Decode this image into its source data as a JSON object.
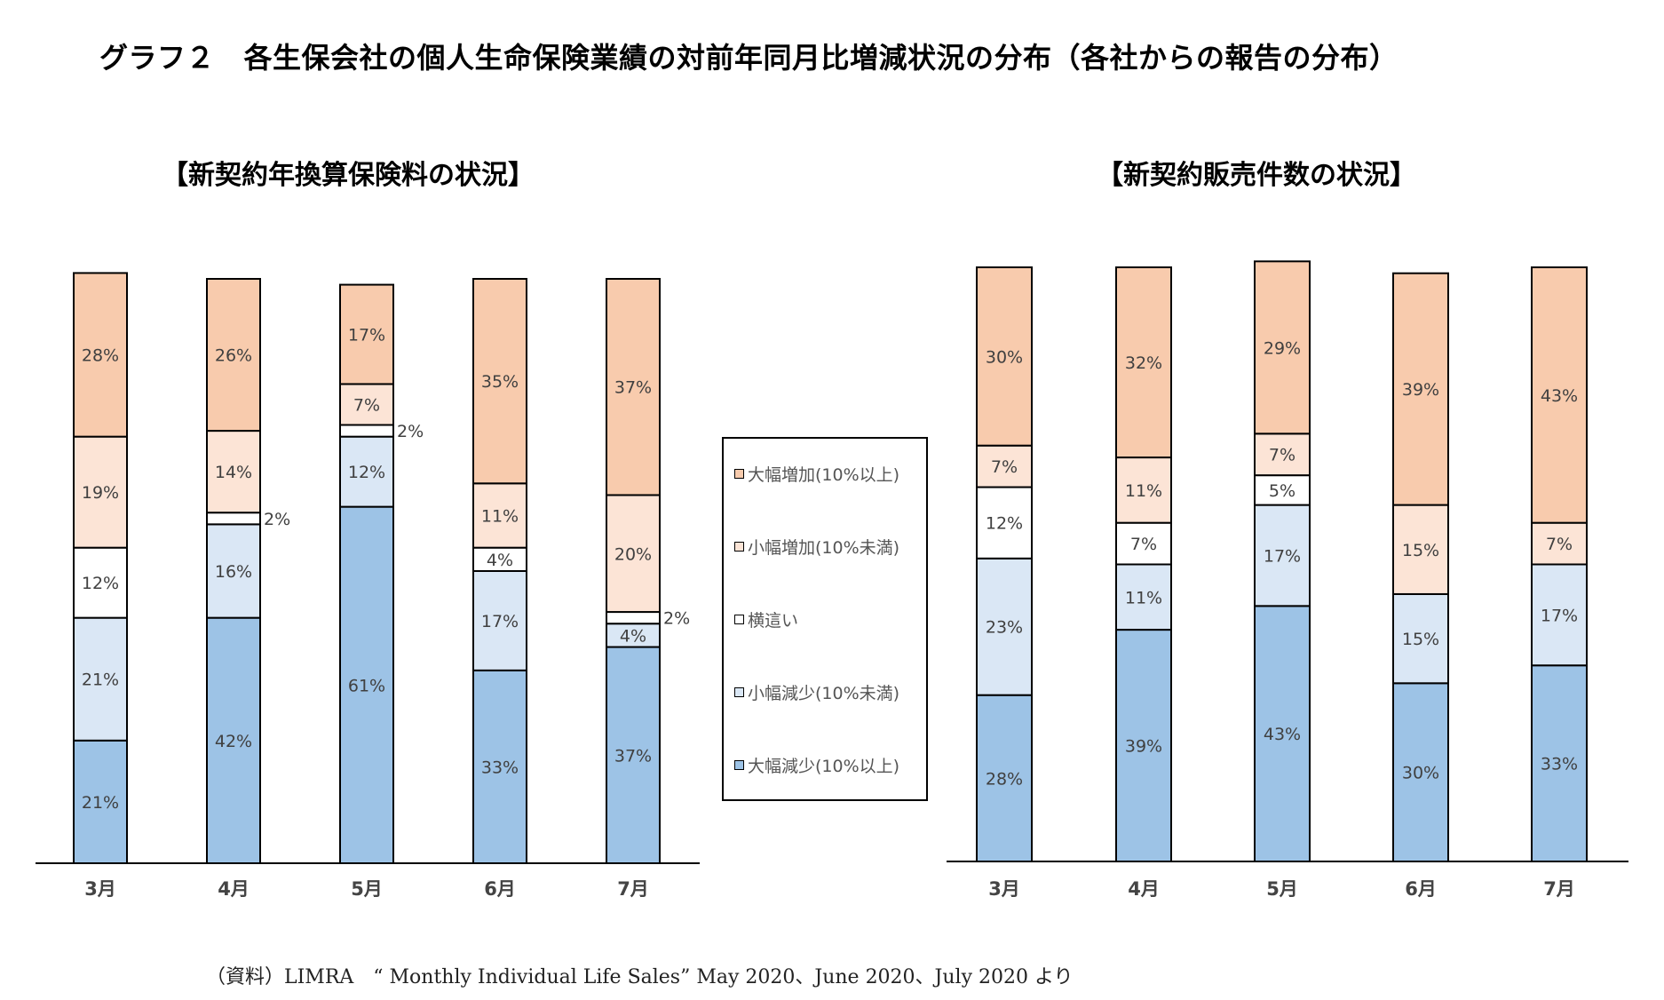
{
  "title": "グラフ２　各生保会社の個人生命保険業績の対前年同月比増減状況の分布（各社からの報告の分布）",
  "source_note": "（資料）LIMRA　“ Monthly Individual Life Sales” May 2020、June 2020、July 2020 より",
  "colors": {
    "large_increase": "#f8cbad",
    "small_increase": "#fce4d6",
    "flat": "#ffffff",
    "small_decrease": "#dae7f5",
    "large_decrease": "#9dc3e6"
  },
  "legend": [
    {
      "label": "大幅増加(10%以上)",
      "color": "#f8cbad"
    },
    {
      "label": "小幅増加(10%未満)",
      "color": "#fce4d6"
    },
    {
      "label": "横這い",
      "color": "#ffffff"
    },
    {
      "label": "小幅減少(10%未満)",
      "color": "#dae7f5"
    },
    {
      "label": "大幅減少(10%以上)",
      "color": "#9dc3e6"
    }
  ],
  "chart_data": [
    {
      "type": "bar",
      "stacked": true,
      "title": "【新契約年換算保険料の状況】",
      "categories": [
        "3月",
        "4月",
        "5月",
        "6月",
        "7月"
      ],
      "series": [
        {
          "name": "大幅減少(10%以上)",
          "values": [
            21,
            42,
            61,
            33,
            37
          ]
        },
        {
          "name": "小幅減少(10%未満)",
          "values": [
            21,
            16,
            12,
            17,
            4
          ]
        },
        {
          "name": "横這い",
          "values": [
            12,
            2,
            2,
            4,
            2
          ]
        },
        {
          "name": "小幅増加(10%未満)",
          "values": [
            19,
            14,
            7,
            11,
            20
          ]
        },
        {
          "name": "大幅増加(10%以上)",
          "values": [
            28,
            26,
            17,
            35,
            37
          ]
        }
      ],
      "data_labels": [
        [
          "21%",
          "21%",
          "12%",
          "19%",
          "28%"
        ],
        [
          "42%",
          "16%",
          "2%",
          "14%",
          "26%"
        ],
        [
          "61%",
          "12%",
          "2%",
          "7%",
          "17%"
        ],
        [
          "33%",
          "17%",
          "4%",
          "11%",
          "35%"
        ],
        [
          "37%",
          "4%",
          "2%",
          "20%",
          "37%"
        ]
      ],
      "ylim": [
        0,
        100
      ],
      "grid": false
    },
    {
      "type": "bar",
      "stacked": true,
      "title": "【新契約販売件数の状況】",
      "categories": [
        "3月",
        "4月",
        "5月",
        "6月",
        "7月"
      ],
      "series": [
        {
          "name": "大幅減少(10%以上)",
          "values": [
            28,
            39,
            43,
            30,
            33
          ]
        },
        {
          "name": "小幅減少(10%未満)",
          "values": [
            23,
            11,
            17,
            15,
            17
          ]
        },
        {
          "name": "横這い",
          "values": [
            12,
            7,
            5,
            0,
            0
          ]
        },
        {
          "name": "小幅増加(10%未満)",
          "values": [
            7,
            11,
            7,
            15,
            7
          ]
        },
        {
          "name": "大幅増加(10%以上)",
          "values": [
            30,
            32,
            29,
            39,
            43
          ]
        }
      ],
      "data_labels": [
        [
          "28%",
          "23%",
          "12%",
          "7%",
          "30%"
        ],
        [
          "39%",
          "11%",
          "7%",
          "11%",
          "32%"
        ],
        [
          "43%",
          "17%",
          "5%",
          "7%",
          "29%"
        ],
        [
          "30%",
          "15%",
          "",
          "15%",
          "39%"
        ],
        [
          "33%",
          "17%",
          "",
          "7%",
          "43%"
        ]
      ],
      "ylim": [
        0,
        100
      ],
      "grid": false
    }
  ]
}
